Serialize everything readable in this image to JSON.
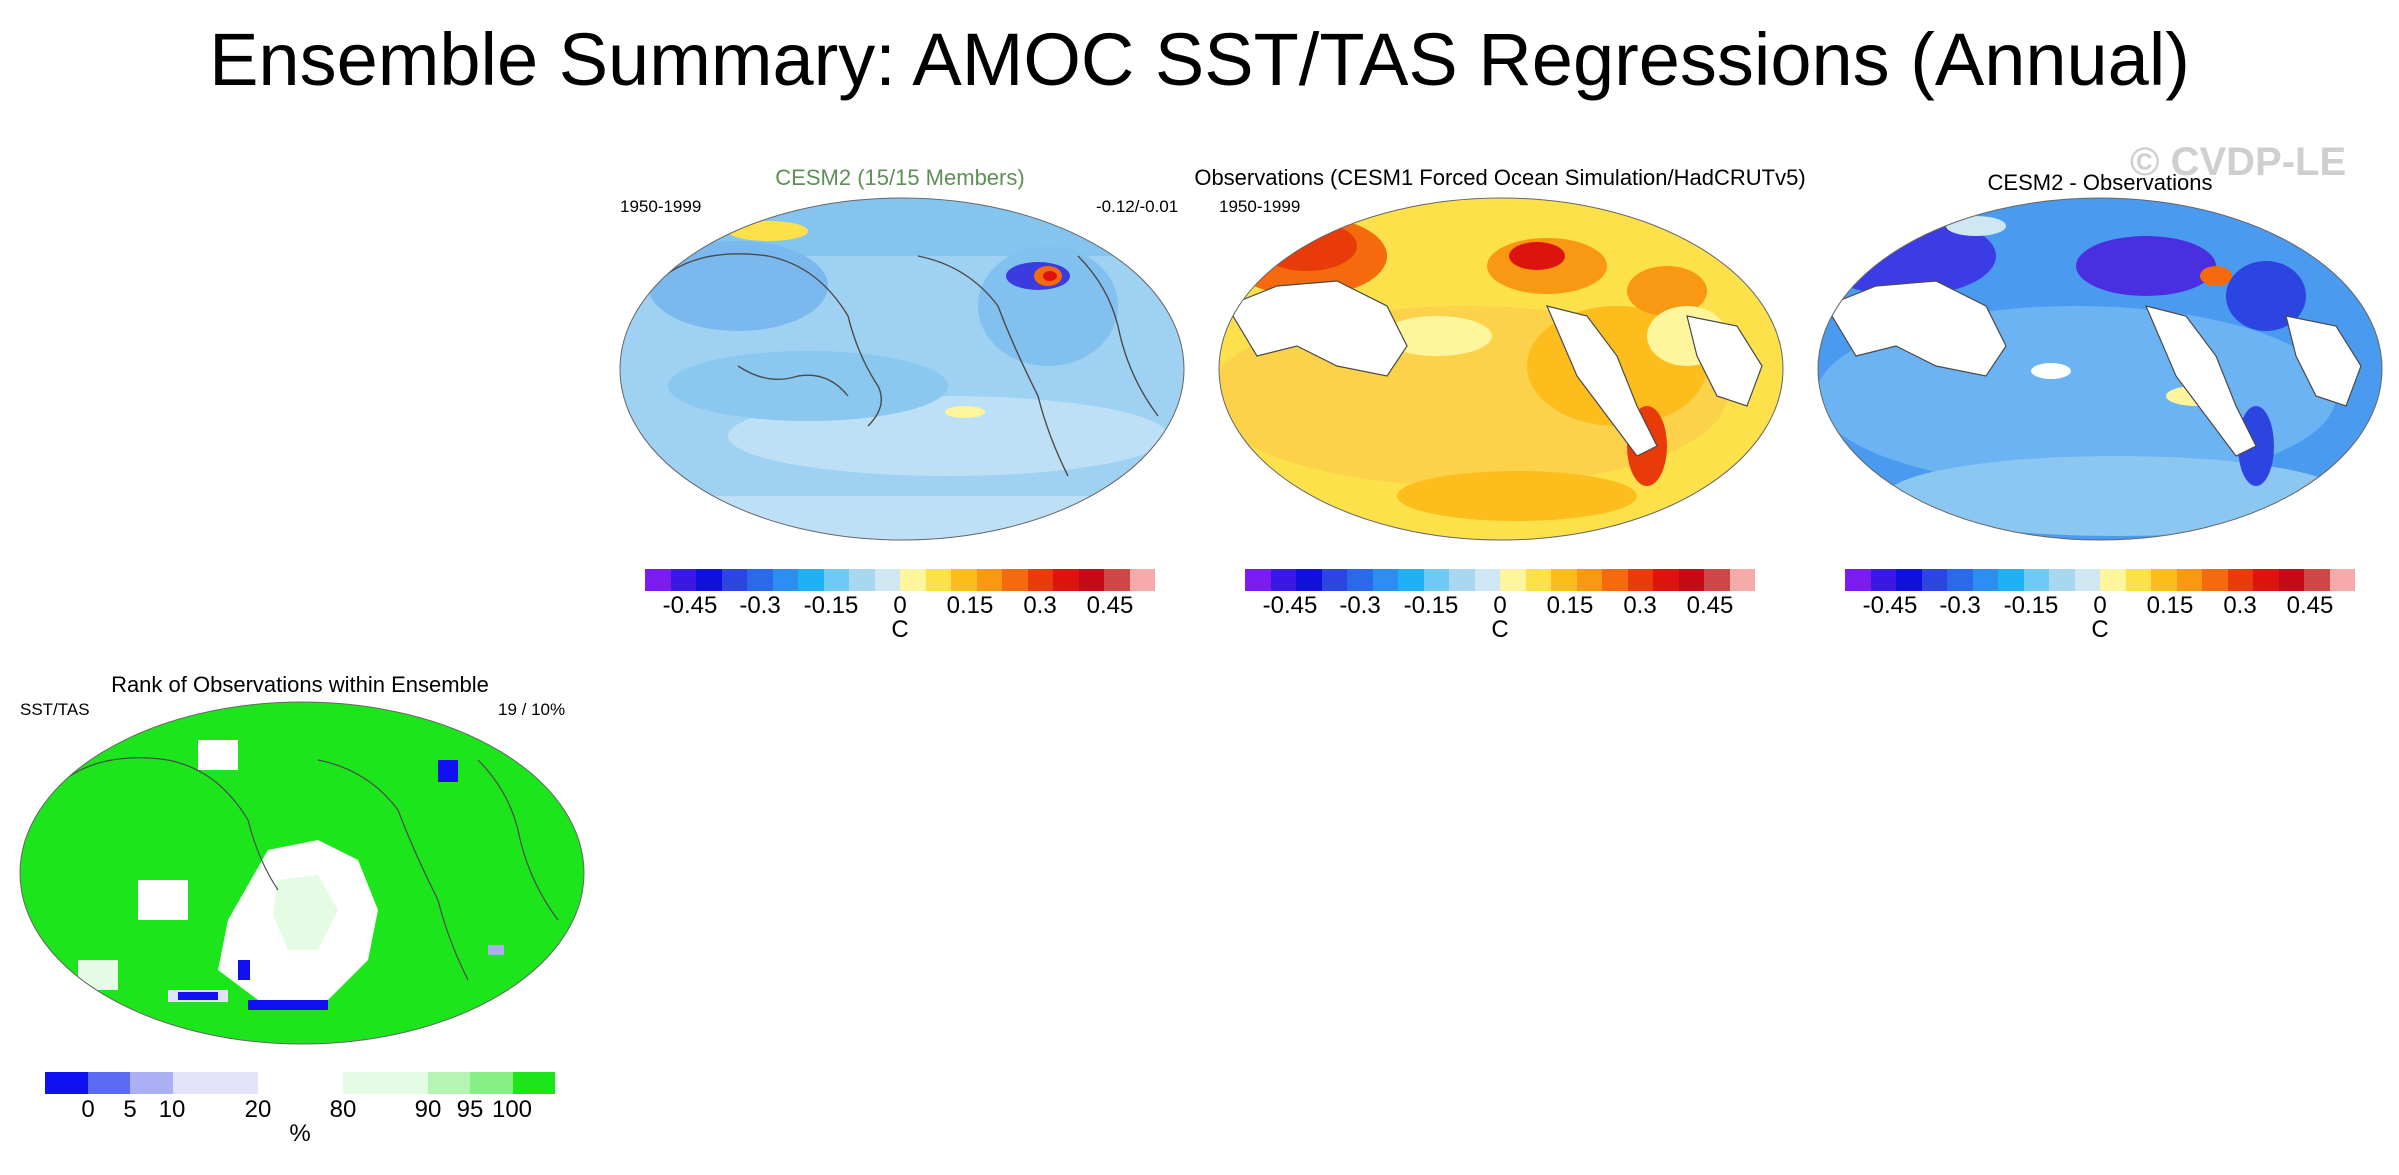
{
  "title": "Ensemble Summary: AMOC SST/TAS Regressions (Annual)",
  "watermark": "© CVDP-LE",
  "panels": {
    "cesm2": {
      "title": "CESM2 (15/15 Members)",
      "period": "1950-1999",
      "range": "-0.12/-0.01",
      "title_color": "#5e8f57"
    },
    "obs": {
      "title": "Observations (CESM1 Forced Ocean Simulation/HadCRUTv5)",
      "period": "1950-1999"
    },
    "diff": {
      "title": "CESM2 - Observations"
    },
    "rank": {
      "title": "Rank of Observations within Ensemble",
      "label_left": "SST/TAS",
      "label_right": "19 /  10%"
    }
  },
  "colorbar": {
    "unit": "C",
    "ticks": [
      "-0.45",
      "-0.3",
      "-0.15",
      "0",
      "0.15",
      "0.3",
      "0.45"
    ],
    "colors": [
      "#7a1cf0",
      "#3b17e6",
      "#1010dc",
      "#2c45e0",
      "#2a6ae8",
      "#2d8ef2",
      "#1fb0f5",
      "#6ec9f5",
      "#a8d8ef",
      "#cfe7f3",
      "#fff59d",
      "#fde14b",
      "#fcbd1d",
      "#f99813",
      "#f46a0c",
      "#e93a09",
      "#dc140d",
      "#c40a14",
      "#cf4646",
      "#f6aaaa"
    ]
  },
  "rank_colorbar": {
    "unit": "%",
    "ticks": [
      "0",
      "5",
      "10",
      "20",
      "80",
      "90",
      "95",
      "100"
    ],
    "colors": [
      "#1010f0",
      "#5a6af5",
      "#aab0f3",
      "#e2e2fb",
      "#ffffff",
      "#e4fbe4",
      "#b4f5b4",
      "#86f086",
      "#1ce51c"
    ]
  },
  "colors": {
    "ocean_blue": "#98cdf0",
    "obs_warm": "#fcd24a",
    "diff_blue": "#2f78e6",
    "rank_green": "#1ce51c"
  }
}
